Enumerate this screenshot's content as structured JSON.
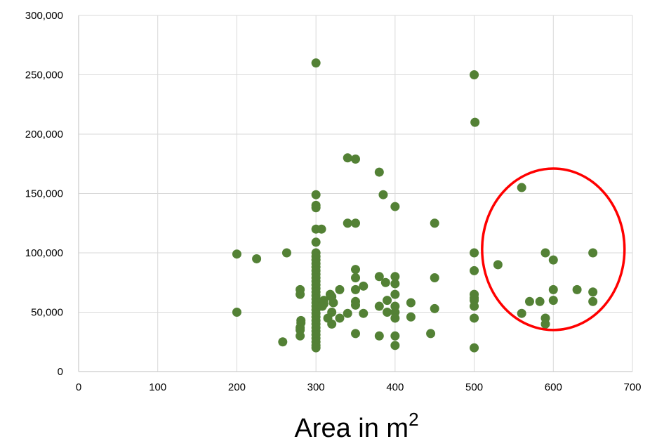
{
  "chart_data": {
    "type": "scatter",
    "title": "",
    "xlabel": "Area in m",
    "xlabel_superscript": "2",
    "ylabel": "",
    "xlim": [
      0,
      700
    ],
    "ylim": [
      0,
      300000
    ],
    "xticks": [
      0,
      100,
      200,
      300,
      400,
      500,
      600,
      700
    ],
    "xtick_labels": [
      "0",
      "100",
      "200",
      "300",
      "400",
      "500",
      "600",
      "700"
    ],
    "yticks": [
      0,
      50000,
      100000,
      150000,
      200000,
      250000,
      300000
    ],
    "ytick_labels": [
      "0",
      "50,000",
      "100,000",
      "150,000",
      "200,000",
      "250,000",
      "300,000"
    ],
    "grid": true,
    "legend": "none",
    "point_color": "#538135",
    "annotation": {
      "shape": "ellipse",
      "color": "#ff0000",
      "center": [
        600,
        103000
      ],
      "rx": 90,
      "ry": 68000
    },
    "points": [
      [
        200,
        99000
      ],
      [
        200,
        50000
      ],
      [
        225,
        95000
      ],
      [
        258,
        25000
      ],
      [
        263,
        100000
      ],
      [
        280,
        69000
      ],
      [
        280,
        65000
      ],
      [
        281,
        43000
      ],
      [
        281,
        41000
      ],
      [
        280,
        37000
      ],
      [
        280,
        35000
      ],
      [
        280,
        30000
      ],
      [
        300,
        260000
      ],
      [
        300,
        149000
      ],
      [
        300,
        140000
      ],
      [
        300,
        138000
      ],
      [
        300,
        120000
      ],
      [
        300,
        109000
      ],
      [
        300,
        100000
      ],
      [
        300,
        97000
      ],
      [
        300,
        94000
      ],
      [
        300,
        91000
      ],
      [
        300,
        88000
      ],
      [
        300,
        85000
      ],
      [
        300,
        82000
      ],
      [
        300,
        79000
      ],
      [
        300,
        76000
      ],
      [
        300,
        73000
      ],
      [
        300,
        70000
      ],
      [
        300,
        67000
      ],
      [
        300,
        64000
      ],
      [
        300,
        61000
      ],
      [
        300,
        58000
      ],
      [
        300,
        55000
      ],
      [
        300,
        52000
      ],
      [
        300,
        49000
      ],
      [
        300,
        46000
      ],
      [
        300,
        43000
      ],
      [
        300,
        40000
      ],
      [
        300,
        37000
      ],
      [
        300,
        34000
      ],
      [
        300,
        31000
      ],
      [
        300,
        28000
      ],
      [
        300,
        25000
      ],
      [
        300,
        22000
      ],
      [
        300,
        20000
      ],
      [
        307,
        120000
      ],
      [
        310,
        60000
      ],
      [
        308,
        55000
      ],
      [
        310,
        57000
      ],
      [
        315,
        45000
      ],
      [
        318,
        65000
      ],
      [
        320,
        63000
      ],
      [
        320,
        50000
      ],
      [
        320,
        40000
      ],
      [
        322,
        58000
      ],
      [
        330,
        69000
      ],
      [
        330,
        45000
      ],
      [
        340,
        180000
      ],
      [
        340,
        125000
      ],
      [
        340,
        49000
      ],
      [
        350,
        179000
      ],
      [
        350,
        125000
      ],
      [
        350,
        86000
      ],
      [
        350,
        79000
      ],
      [
        350,
        69000
      ],
      [
        350,
        59000
      ],
      [
        350,
        56000
      ],
      [
        350,
        32000
      ],
      [
        360,
        72000
      ],
      [
        360,
        49000
      ],
      [
        380,
        168000
      ],
      [
        380,
        80000
      ],
      [
        380,
        55000
      ],
      [
        380,
        30000
      ],
      [
        385,
        149000
      ],
      [
        388,
        75000
      ],
      [
        390,
        60000
      ],
      [
        390,
        50000
      ],
      [
        400,
        139000
      ],
      [
        400,
        80000
      ],
      [
        400,
        74000
      ],
      [
        400,
        65000
      ],
      [
        400,
        55000
      ],
      [
        400,
        50000
      ],
      [
        400,
        45000
      ],
      [
        400,
        30000
      ],
      [
        400,
        22000
      ],
      [
        420,
        58000
      ],
      [
        420,
        46000
      ],
      [
        445,
        32000
      ],
      [
        450,
        125000
      ],
      [
        450,
        79000
      ],
      [
        450,
        53000
      ],
      [
        500,
        250000
      ],
      [
        501,
        210000
      ],
      [
        500,
        100000
      ],
      [
        500,
        85000
      ],
      [
        500,
        65000
      ],
      [
        500,
        62000
      ],
      [
        500,
        60000
      ],
      [
        500,
        55000
      ],
      [
        500,
        45000
      ],
      [
        500,
        20000
      ],
      [
        530,
        90000
      ],
      [
        560,
        155000
      ],
      [
        560,
        49000
      ],
      [
        570,
        59000
      ],
      [
        583,
        59000
      ],
      [
        590,
        100000
      ],
      [
        590,
        45000
      ],
      [
        590,
        40000
      ],
      [
        600,
        94000
      ],
      [
        600,
        69000
      ],
      [
        600,
        60000
      ],
      [
        630,
        69000
      ],
      [
        650,
        100000
      ],
      [
        650,
        67000
      ],
      [
        650,
        59000
      ]
    ]
  }
}
